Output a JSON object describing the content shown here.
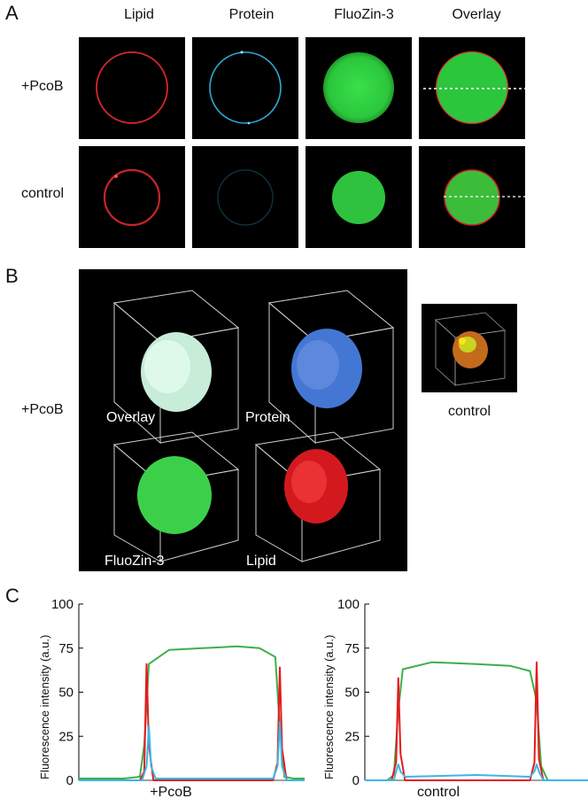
{
  "panels": {
    "a": "A",
    "b": "B",
    "c": "C"
  },
  "panel_a": {
    "columns": [
      "Lipid",
      "Protein",
      "FluoZin-3",
      "Overlay"
    ],
    "rows": [
      "+PcoB",
      "control"
    ]
  },
  "panel_b": {
    "row_label": "+PcoB",
    "box_labels": [
      "Overlay",
      "Protein",
      "FluoZin-3",
      "Lipid"
    ],
    "control_label": "control"
  },
  "colors": {
    "lipid": "#e41a1c",
    "protein": "#3cb6e6",
    "fluozin": "#3fae49"
  },
  "chart_data": [
    {
      "type": "line",
      "xlabel": "+PcoB",
      "ylabel": "Fluorescence intensity (a.u.)",
      "ylim": [
        0,
        100
      ],
      "yticks": [
        "0",
        "25",
        "50",
        "75",
        "100"
      ],
      "series": [
        {
          "color": "#3fae49",
          "x": [
            0,
            0.2,
            0.27,
            0.29,
            0.31,
            0.4,
            0.55,
            0.7,
            0.8,
            0.87,
            0.89,
            0.91,
            0.95,
            1.0
          ],
          "y": [
            1,
            1,
            2,
            20,
            66,
            74,
            75,
            76,
            75,
            70,
            30,
            2,
            1,
            1
          ]
        },
        {
          "color": "#e41a1c",
          "x": [
            0,
            0.27,
            0.29,
            0.3,
            0.31,
            0.33,
            0.86,
            0.88,
            0.89,
            0.9,
            0.92,
            1.0
          ],
          "y": [
            0,
            0,
            5,
            66,
            20,
            0,
            0,
            10,
            64,
            18,
            0,
            0
          ]
        },
        {
          "color": "#3cb6e6",
          "x": [
            0,
            0.28,
            0.3,
            0.31,
            0.32,
            0.34,
            0.86,
            0.88,
            0.89,
            0.9,
            0.92,
            1.0
          ],
          "y": [
            0,
            0,
            8,
            31,
            8,
            1,
            1,
            8,
            33,
            8,
            0,
            0
          ]
        }
      ]
    },
    {
      "type": "line",
      "xlabel": "control",
      "ylabel": "Fluorescence intensity (a.u.)",
      "ylim": [
        0,
        100
      ],
      "yticks": [
        "0",
        "25",
        "50",
        "75",
        "100"
      ],
      "series": [
        {
          "color": "#3fae49",
          "x": [
            0,
            0.1,
            0.13,
            0.15,
            0.17,
            0.3,
            0.5,
            0.65,
            0.74,
            0.77,
            0.79,
            0.82,
            0.9,
            1.0
          ],
          "y": [
            0,
            0,
            3,
            40,
            63,
            67,
            66,
            65,
            62,
            45,
            8,
            0,
            0,
            0
          ]
        },
        {
          "color": "#e41a1c",
          "x": [
            0,
            0.12,
            0.14,
            0.15,
            0.16,
            0.18,
            0.74,
            0.76,
            0.77,
            0.78,
            0.8,
            1.0
          ],
          "y": [
            0,
            0,
            10,
            58,
            15,
            0,
            0,
            10,
            67,
            12,
            0,
            0
          ]
        },
        {
          "color": "#3cb6e6",
          "x": [
            0,
            0.13,
            0.14,
            0.15,
            0.16,
            0.18,
            0.5,
            0.74,
            0.76,
            0.77,
            0.78,
            0.8,
            1.0
          ],
          "y": [
            0,
            0,
            5,
            9,
            5,
            2,
            3,
            2,
            5,
            9,
            5,
            0,
            0
          ]
        }
      ]
    }
  ]
}
